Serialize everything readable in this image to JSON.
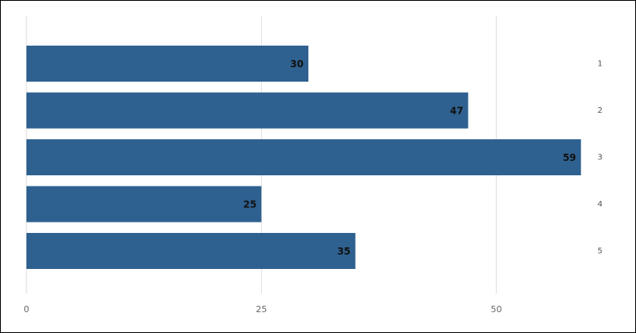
{
  "chart_data": {
    "type": "bar",
    "orientation": "horizontal",
    "categories": [
      "1",
      "2",
      "3",
      "4",
      "5"
    ],
    "values": [
      30,
      47,
      59,
      25,
      35
    ],
    "color": "#2e6190",
    "xlim": [
      0,
      60
    ],
    "xticks": [
      0,
      25,
      50
    ],
    "grid": true
  }
}
